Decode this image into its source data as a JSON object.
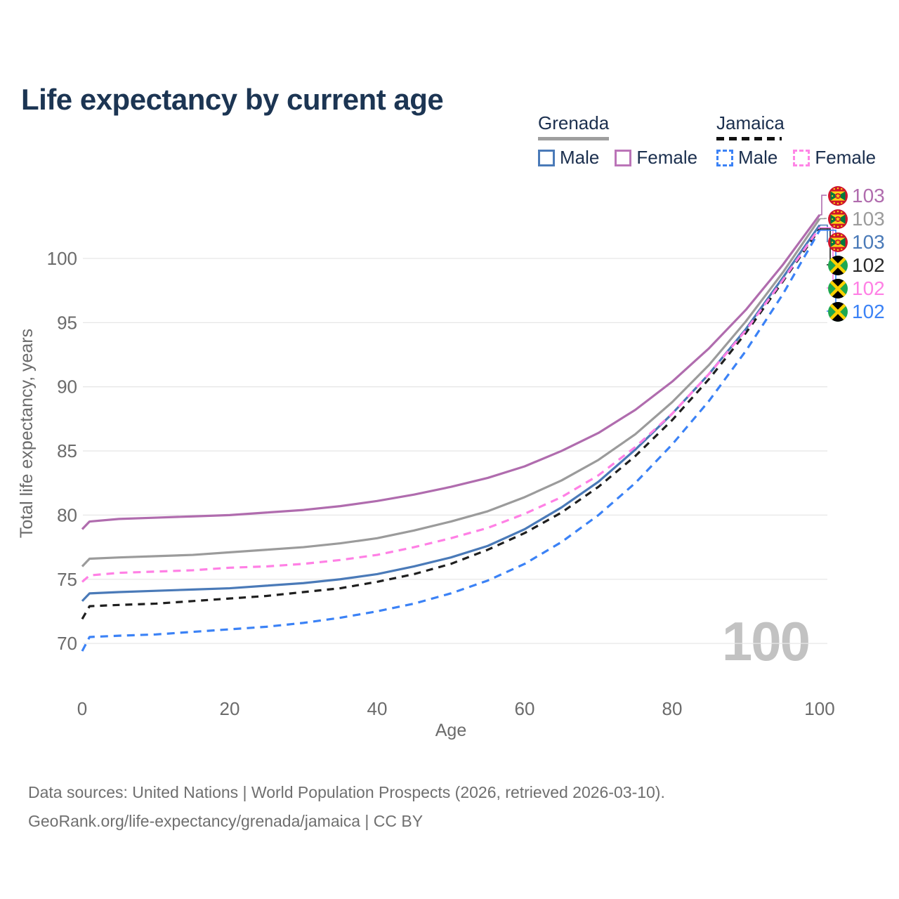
{
  "title": "Life expectancy by current age",
  "watermark": "100",
  "legend": {
    "groups": [
      {
        "country": "Grenada",
        "line_style": "solid",
        "underline_color": "#9e9e9e",
        "items": [
          {
            "label": "Male",
            "color": "#4a7ab8"
          },
          {
            "label": "Female",
            "color": "#bb74b8"
          }
        ]
      },
      {
        "country": "Jamaica",
        "line_style": "dashed",
        "underline_color": "#111111",
        "items": [
          {
            "label": "Male",
            "color": "#3b82f6"
          },
          {
            "label": "Female",
            "color": "#ff85e6"
          }
        ]
      }
    ]
  },
  "chart_data": {
    "type": "line",
    "title": "Life expectancy by current age",
    "xlabel": "Age",
    "ylabel": "Total life expectancy, years",
    "x_ticks": [
      0,
      20,
      40,
      60,
      80,
      100
    ],
    "y_ticks": [
      70,
      75,
      80,
      85,
      90,
      95,
      100
    ],
    "xlim": [
      0,
      100
    ],
    "ylim": [
      70,
      100
    ],
    "grid": true,
    "legend_position": "top-right",
    "x": [
      0,
      1,
      5,
      10,
      15,
      20,
      25,
      30,
      35,
      40,
      45,
      50,
      55,
      60,
      65,
      70,
      75,
      80,
      85,
      90,
      95,
      100
    ],
    "series": [
      {
        "name": "Grenada Female",
        "country": "Grenada",
        "sex": "Female",
        "color": "#b06cae",
        "dash": null,
        "flag": "grenada",
        "end_label": "103",
        "values": [
          78.9,
          79.5,
          79.7,
          79.8,
          79.9,
          80.0,
          80.2,
          80.4,
          80.7,
          81.1,
          81.6,
          82.2,
          82.9,
          83.8,
          85.0,
          86.4,
          88.2,
          90.4,
          93.0,
          96.0,
          99.5,
          103.4
        ]
      },
      {
        "name": "Grenada (both sexes)",
        "country": "Grenada",
        "sex": "All",
        "color": "#9b9b9b",
        "dash": null,
        "flag": "grenada",
        "end_label": "103",
        "values": [
          76.0,
          76.6,
          76.7,
          76.8,
          76.9,
          77.1,
          77.3,
          77.5,
          77.8,
          78.2,
          78.8,
          79.5,
          80.3,
          81.4,
          82.7,
          84.3,
          86.3,
          88.8,
          91.7,
          95.1,
          98.9,
          103.1
        ]
      },
      {
        "name": "Grenada Male",
        "country": "Grenada",
        "sex": "Male",
        "color": "#4a7ab8",
        "dash": null,
        "flag": "grenada",
        "end_label": "103",
        "values": [
          73.3,
          73.9,
          74.0,
          74.1,
          74.2,
          74.3,
          74.5,
          74.7,
          75.0,
          75.4,
          76.0,
          76.7,
          77.6,
          78.9,
          80.6,
          82.6,
          85.1,
          87.9,
          91.0,
          94.5,
          98.5,
          102.6
        ]
      },
      {
        "name": "Jamaica (both sexes)",
        "country": "Jamaica",
        "sex": "All",
        "color": "#1f1f1f",
        "dash": "10 8",
        "flag": "jamaica",
        "end_label": "102",
        "values": [
          71.9,
          72.9,
          73.0,
          73.1,
          73.3,
          73.5,
          73.7,
          74.0,
          74.3,
          74.8,
          75.4,
          76.2,
          77.3,
          78.6,
          80.2,
          82.2,
          84.6,
          87.4,
          90.6,
          94.2,
          98.2,
          102.3
        ]
      },
      {
        "name": "Jamaica Female",
        "country": "Jamaica",
        "sex": "Female",
        "color": "#ff80e5",
        "dash": "11 8",
        "flag": "jamaica",
        "end_label": "102",
        "values": [
          74.8,
          75.3,
          75.5,
          75.6,
          75.7,
          75.9,
          76.0,
          76.2,
          76.5,
          76.9,
          77.5,
          78.2,
          79.0,
          80.1,
          81.4,
          83.1,
          85.3,
          87.9,
          91.0,
          94.4,
          98.3,
          102.4
        ]
      },
      {
        "name": "Jamaica Male",
        "country": "Jamaica",
        "sex": "Male",
        "color": "#3b82f6",
        "dash": "11 8",
        "flag": "jamaica",
        "end_label": "102",
        "values": [
          69.4,
          70.5,
          70.6,
          70.7,
          70.9,
          71.1,
          71.3,
          71.6,
          72.0,
          72.5,
          73.1,
          73.9,
          74.9,
          76.2,
          77.9,
          80.0,
          82.5,
          85.5,
          88.9,
          92.8,
          97.2,
          102.2
        ]
      }
    ]
  },
  "footer": {
    "line1": "Data sources: United Nations | World Population Prospects (2026, retrieved 2026-03-10).",
    "line2": "GeoRank.org/life-expectancy/grenada/jamaica | CC BY"
  }
}
